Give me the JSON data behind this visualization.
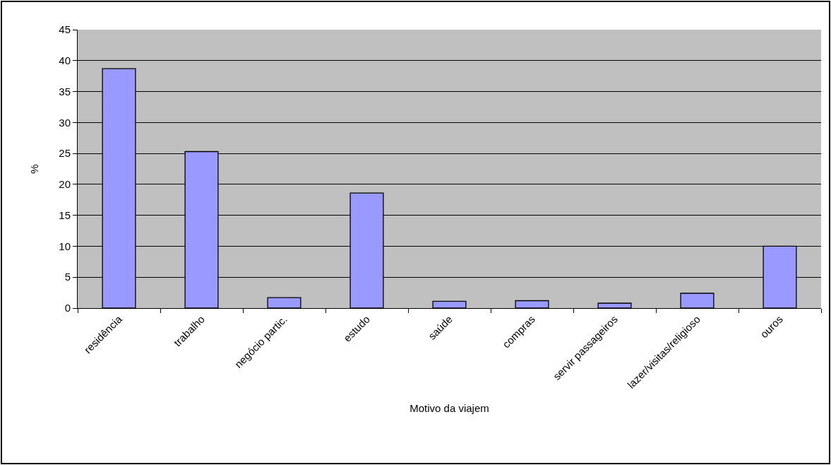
{
  "chart_data": {
    "type": "bar",
    "xlabel": "Motivo da viajem",
    "ylabel": "%",
    "categories": [
      "residência",
      "trabalho",
      "negócio partic.",
      "estudo",
      "saúde",
      "compras",
      "servir passageiros",
      "lazer/visitas/religioso",
      "ouros"
    ],
    "values": [
      38.7,
      25.3,
      1.7,
      18.6,
      1.1,
      1.2,
      0.8,
      2.4,
      10.0
    ],
    "color": "#9999ff",
    "ylim": [
      0,
      45
    ],
    "yticks": [
      0,
      5,
      10,
      15,
      20,
      25,
      30,
      35,
      40,
      45
    ],
    "grid": "y"
  }
}
